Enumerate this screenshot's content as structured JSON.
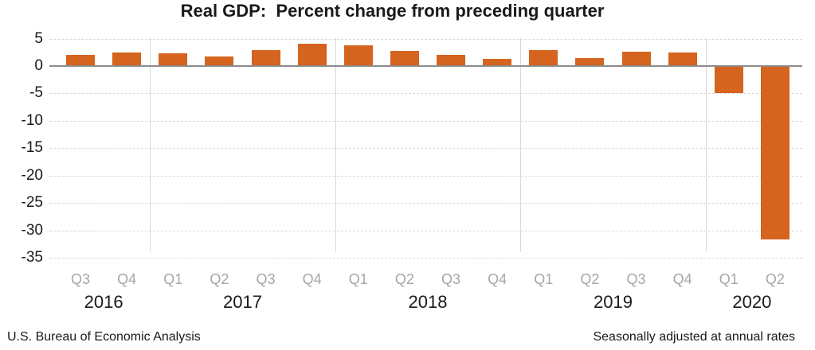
{
  "title": "Real GDP:  Percent change from preceding quarter",
  "footer": {
    "left": "U.S. Bureau of Economic Analysis",
    "right": "Seasonally adjusted at annual rates"
  },
  "colors": {
    "bar": "#d4641e",
    "zero_line": "#8c8c8c",
    "gridline": "#d9d9d9",
    "separator": "#d9d9d9",
    "quarter_label": "#a6a6a6",
    "text": "#1a1a1a",
    "background": "#ffffff"
  },
  "chart_data": {
    "type": "bar",
    "title": "Real GDP:  Percent change from preceding quarter",
    "xlabel": "",
    "ylabel": "",
    "unit": "percent",
    "ylim": [
      -35,
      5
    ],
    "yticks": [
      5,
      0,
      -5,
      -10,
      -15,
      -20,
      -25,
      -30,
      -35
    ],
    "grid": "horizontal-dashed",
    "legend": "none",
    "categories": [
      "Q3 2016",
      "Q4 2016",
      "Q1 2017",
      "Q2 2017",
      "Q3 2017",
      "Q4 2017",
      "Q1 2018",
      "Q2 2018",
      "Q3 2018",
      "Q4 2018",
      "Q1 2019",
      "Q2 2019",
      "Q3 2019",
      "Q4 2019",
      "Q1 2020",
      "Q2 2020"
    ],
    "values": [
      2.1,
      2.5,
      2.3,
      1.7,
      2.9,
      4.1,
      3.8,
      2.7,
      2.1,
      1.3,
      2.9,
      1.5,
      2.6,
      2.4,
      -5.0,
      -31.7
    ],
    "groups": [
      {
        "year": "2016",
        "quarters": [
          "Q3",
          "Q4"
        ],
        "values": [
          2.1,
          2.5
        ]
      },
      {
        "year": "2017",
        "quarters": [
          "Q1",
          "Q2",
          "Q3",
          "Q4"
        ],
        "values": [
          2.3,
          1.7,
          2.9,
          4.1
        ]
      },
      {
        "year": "2018",
        "quarters": [
          "Q1",
          "Q2",
          "Q3",
          "Q4"
        ],
        "values": [
          3.8,
          2.7,
          2.1,
          1.3
        ]
      },
      {
        "year": "2019",
        "quarters": [
          "Q1",
          "Q2",
          "Q3",
          "Q4"
        ],
        "values": [
          2.9,
          1.5,
          2.6,
          2.4
        ]
      },
      {
        "year": "2020",
        "quarters": [
          "Q1",
          "Q2"
        ],
        "values": [
          -5.0,
          -31.7
        ]
      }
    ]
  }
}
